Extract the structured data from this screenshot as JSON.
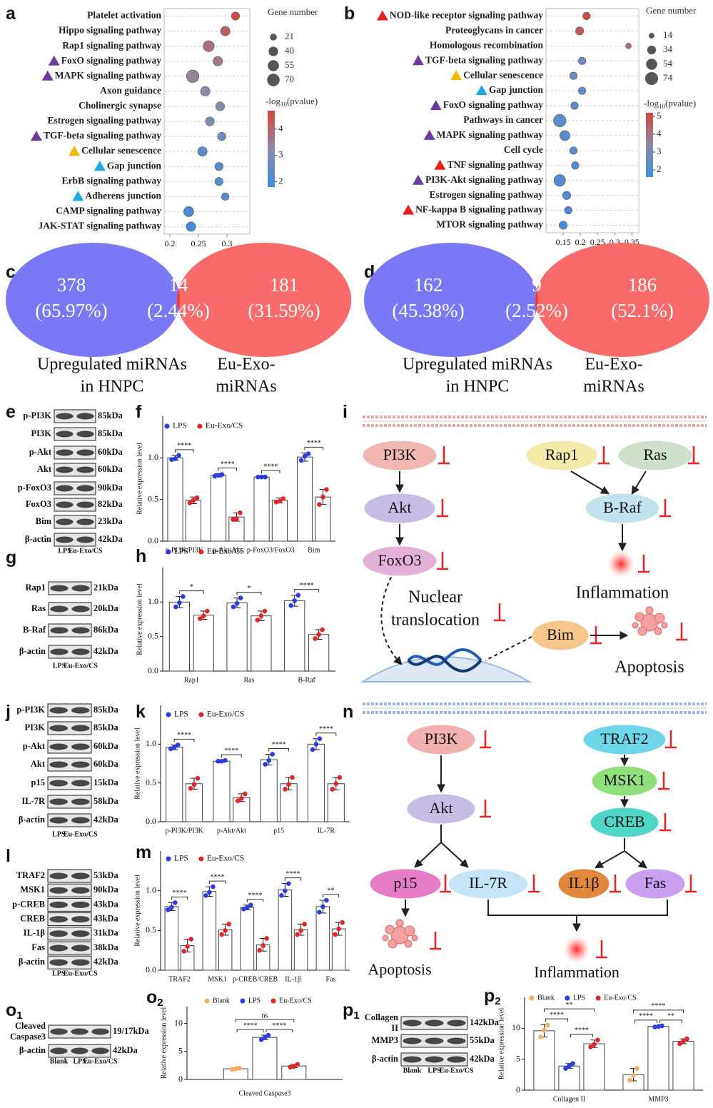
{
  "chart_data": [
    {
      "type": "bubble",
      "panel": "a",
      "categories": [
        "Platelet activation",
        "Hippo signaling pathway",
        "Rap1 signaling pathway",
        "FoxO signaling pathway",
        "MAPK signaling pathway",
        "Axon guidance",
        "Cholinergic synapse",
        "Estrogen signaling pathway",
        "TGF-beta signaling pathway",
        "Cellular senescence",
        "Gap junction",
        "ErbB signaling pathway",
        "Adherens junction",
        "CAMP signaling pathway",
        "JAK-STAT signaling pathway"
      ],
      "values": [
        0.315,
        0.297,
        0.268,
        0.284,
        0.24,
        0.262,
        0.288,
        0.27,
        0.291,
        0.257,
        0.286,
        0.286,
        0.297,
        0.233,
        0.237
      ],
      "sizes": [
        30,
        40,
        55,
        40,
        70,
        40,
        35,
        35,
        30,
        40,
        30,
        30,
        25,
        45,
        40
      ],
      "color_values": [
        4.5,
        4.2,
        3.8,
        3.6,
        3.4,
        3.3,
        3.1,
        3.0,
        2.6,
        2.4,
        2.3,
        2.3,
        2.2,
        2.0,
        2.0
      ],
      "markers": [
        null,
        null,
        null,
        "#6b3b9e",
        "#6b3b9e",
        null,
        null,
        null,
        "#6b3b9e",
        "#f5b800",
        "#1ea8e0",
        null,
        "#1ea8e0",
        null,
        null
      ],
      "xlim": [
        0.19,
        0.34
      ],
      "xticks": [
        0.2,
        0.25,
        0.3
      ],
      "grid": true,
      "size_title": "Gene number",
      "size_ticks": [
        21,
        40,
        55,
        70
      ],
      "color_title": [
        "-log",
        "10",
        "(pvalue)"
      ],
      "clim": [
        1.8,
        4.7
      ],
      "cticks": [
        2,
        3,
        4
      ],
      "colormap": [
        "#3c8ee0",
        "#8e8aa6",
        "#d4453a"
      ]
    },
    {
      "type": "bubble",
      "panel": "b",
      "categories": [
        "NOD-like receptor signaling pathway",
        "Proteoglycans in cancer",
        "Homologous recombination",
        "TGF-beta signaling pathway",
        "Cellular senescence",
        "Gap junction",
        "FoxO signaling pathway",
        "Pathways in cancer",
        "MAPK signaling pathway",
        "Cell cycle",
        "TNF signaling pathway",
        "PI3K-Akt signaling pathway",
        "Estrogen signaling pathway",
        "NF-kappa B signaling pathway",
        "MTOR signaling pathway"
      ],
      "values": [
        0.218,
        0.198,
        0.34,
        0.205,
        0.18,
        0.205,
        0.183,
        0.14,
        0.155,
        0.18,
        0.185,
        0.14,
        0.16,
        0.165,
        0.15
      ],
      "sizes": [
        25,
        30,
        14,
        25,
        25,
        25,
        25,
        70,
        45,
        25,
        25,
        60,
        30,
        25,
        30
      ],
      "color_values": [
        5.0,
        4.6,
        4.2,
        2.6,
        2.5,
        2.4,
        2.3,
        2.3,
        2.2,
        2.2,
        2.1,
        2.1,
        2.0,
        2.0,
        1.9
      ],
      "markers": [
        "#e8201c",
        null,
        null,
        "#6b3b9e",
        "#f5b800",
        "#1ea8e0",
        "#6b3b9e",
        null,
        "#6b3b9e",
        null,
        "#e8201c",
        "#6b3b9e",
        null,
        "#e8201c",
        null
      ],
      "xlim": [
        0.1,
        0.37
      ],
      "xticks": [
        0.15,
        0.2,
        0.25,
        0.3,
        0.35
      ],
      "grid": true,
      "size_title": "Gene number",
      "size_ticks": [
        14,
        34,
        54,
        74
      ],
      "color_title": [
        "-log",
        "10",
        "(pvalue)"
      ],
      "clim": [
        1.6,
        5.2
      ],
      "cticks": [
        2,
        3,
        4,
        5
      ],
      "colormap": [
        "#3c8ee0",
        "#8e8aa6",
        "#d4453a"
      ]
    },
    {
      "type": "venn",
      "panel": "c",
      "values": [
        378,
        14,
        181
      ],
      "percentages": [
        65.97,
        2.44,
        31.59
      ],
      "percentage_labels": [
        "(65.97%)",
        "(2.44%)",
        "(31.59%)"
      ],
      "set_labels": [
        [
          "Upregulated  miRNAs",
          "in HNPC"
        ],
        [
          "Eu-Exo-",
          "miRNAs"
        ]
      ]
    },
    {
      "type": "venn",
      "panel": "d",
      "values": [
        162,
        9,
        186
      ],
      "percentages": [
        45.38,
        2.52,
        52.1
      ],
      "percentage_labels": [
        "(45.38%)",
        "(2.52%)",
        "(52.1%)"
      ],
      "set_labels": [
        [
          "Upregulated  miRNAs",
          "in HNPC"
        ],
        [
          "Eu-Exo-",
          "miRNAs"
        ]
      ]
    },
    {
      "type": "bar",
      "panel": "f",
      "ylabel": "Relative expression level",
      "categories": [
        "p-PI3K/PI3K",
        "p-Akt/Akt",
        "p-FoxO3/FoxO3",
        "Bim"
      ],
      "series": [
        {
          "name": "LPS",
          "color": "#2b3de0",
          "values": [
            1.0,
            0.79,
            0.77,
            1.01
          ],
          "errors": [
            0.03,
            0.02,
            0.01,
            0.05
          ],
          "points": [
            [
              0.98,
              0.99,
              1.03
            ],
            [
              0.78,
              0.79,
              0.8
            ],
            [
              0.77,
              0.77,
              0.77
            ],
            [
              0.97,
              1.02,
              1.05
            ]
          ]
        },
        {
          "name": "Eu-Exo/CS",
          "color": "#e0262a",
          "values": [
            0.49,
            0.29,
            0.49,
            0.53
          ],
          "errors": [
            0.04,
            0.05,
            0.03,
            0.09
          ],
          "points": [
            [
              0.46,
              0.49,
              0.52
            ],
            [
              0.26,
              0.27,
              0.34
            ],
            [
              0.47,
              0.48,
              0.51
            ],
            [
              0.44,
              0.53,
              0.62
            ]
          ]
        }
      ],
      "significance": [
        "****",
        "****",
        "****",
        "****"
      ],
      "ylim": [
        0,
        1.5
      ],
      "yticks": [
        {
          "value": 0,
          "label": "0.0"
        },
        {
          "value": 0.5,
          "label": "0.5"
        },
        {
          "value": 1,
          "label": "1.0"
        }
      ]
    },
    {
      "type": "bar",
      "panel": "h",
      "ylabel": "Relative expression level",
      "categories": [
        "Rap1",
        "Ras",
        "B-Raf"
      ],
      "series": [
        {
          "name": "LPS",
          "color": "#2b3de0",
          "values": [
            1.0,
            0.99,
            1.02
          ],
          "errors": [
            0.08,
            0.07,
            0.08
          ],
          "points": [
            [
              0.93,
              0.99,
              1.08
            ],
            [
              0.93,
              0.98,
              1.06
            ],
            [
              0.95,
              1.02,
              1.1
            ]
          ]
        },
        {
          "name": "Eu-Exo/CS",
          "color": "#e0262a",
          "values": [
            0.81,
            0.8,
            0.53
          ],
          "errors": [
            0.06,
            0.07,
            0.07
          ],
          "points": [
            [
              0.76,
              0.8,
              0.87
            ],
            [
              0.74,
              0.8,
              0.87
            ],
            [
              0.47,
              0.53,
              0.6
            ]
          ]
        }
      ],
      "significance": [
        "*",
        "*",
        "****"
      ],
      "ylim": [
        0,
        1.5
      ],
      "yticks": [
        {
          "value": 0,
          "label": "0.0"
        },
        {
          "value": 0.5,
          "label": "0.5"
        },
        {
          "value": 1,
          "label": "1.0"
        }
      ]
    },
    {
      "type": "bar",
      "panel": "k",
      "ylabel": "Relative expression level",
      "categories": [
        "p-PI3K/PI3K",
        "p-Akt/Akt",
        "p15",
        "IL-7R"
      ],
      "series": [
        {
          "name": "LPS",
          "color": "#2b3de0",
          "values": [
            0.96,
            0.78,
            0.8,
            1.0
          ],
          "errors": [
            0.03,
            0.01,
            0.07,
            0.07
          ],
          "points": [
            [
              0.94,
              0.96,
              0.99
            ],
            [
              0.78,
              0.78,
              0.79
            ],
            [
              0.74,
              0.79,
              0.87
            ],
            [
              0.93,
              1.0,
              1.07
            ]
          ]
        },
        {
          "name": "Eu-Exo/CS",
          "color": "#e0262a",
          "values": [
            0.49,
            0.31,
            0.49,
            0.49
          ],
          "errors": [
            0.07,
            0.05,
            0.08,
            0.08
          ],
          "points": [
            [
              0.43,
              0.48,
              0.56
            ],
            [
              0.27,
              0.3,
              0.36
            ],
            [
              0.42,
              0.48,
              0.57
            ],
            [
              0.42,
              0.49,
              0.57
            ]
          ]
        }
      ],
      "significance": [
        "****",
        "****",
        "****",
        "****"
      ],
      "ylim": [
        0,
        1.5
      ],
      "yticks": [
        {
          "value": 0,
          "label": "0.0"
        },
        {
          "value": 0.5,
          "label": "0.5"
        },
        {
          "value": 1,
          "label": "1.0"
        }
      ]
    },
    {
      "type": "bar",
      "panel": "m",
      "ylabel": "Relative expression level",
      "categories": [
        "TRAF2",
        "MSK1",
        "p-CREB/CREB",
        "IL-1β",
        "Fas"
      ],
      "series": [
        {
          "name": "LPS",
          "color": "#2b3de0",
          "values": [
            0.8,
            0.99,
            0.79,
            1.01,
            0.8
          ],
          "errors": [
            0.05,
            0.06,
            0.03,
            0.08,
            0.08
          ],
          "points": [
            [
              0.76,
              0.79,
              0.85
            ],
            [
              0.94,
              0.98,
              1.05
            ],
            [
              0.77,
              0.79,
              0.82
            ],
            [
              0.94,
              1.0,
              1.09
            ],
            [
              0.73,
              0.8,
              0.88
            ]
          ]
        },
        {
          "name": "Eu-Exo/CS",
          "color": "#e0262a",
          "values": [
            0.31,
            0.51,
            0.32,
            0.51,
            0.52
          ],
          "errors": [
            0.08,
            0.07,
            0.08,
            0.07,
            0.08
          ],
          "points": [
            [
              0.24,
              0.3,
              0.39
            ],
            [
              0.45,
              0.5,
              0.58
            ],
            [
              0.25,
              0.31,
              0.4
            ],
            [
              0.45,
              0.5,
              0.58
            ],
            [
              0.45,
              0.52,
              0.6
            ]
          ]
        }
      ],
      "significance": [
        "****",
        "****",
        "****",
        "****",
        "**"
      ],
      "ylim": [
        0,
        1.5
      ],
      "yticks": [
        {
          "value": 0,
          "label": "0.0"
        },
        {
          "value": 0.5,
          "label": "0.5"
        },
        {
          "value": 1,
          "label": "1.0"
        }
      ]
    },
    {
      "type": "bar",
      "panel": "o",
      "panel_sub": "2",
      "ylabel": "Relative expression level",
      "categories": [
        "Cleaved Caspase3"
      ],
      "series": [
        {
          "name": "Blank",
          "color": "#f2ad5e",
          "values": [
            1.9
          ],
          "errors": [
            0.1
          ],
          "points": [
            [
              1.8,
              1.9,
              2.0
            ]
          ]
        },
        {
          "name": "LPS",
          "color": "#2b3de0",
          "values": [
            7.5
          ],
          "errors": [
            0.4
          ],
          "points": [
            [
              7.1,
              7.5,
              7.9
            ]
          ]
        },
        {
          "name": "Eu-Exo/CS",
          "color": "#e0262a",
          "values": [
            2.4
          ],
          "errors": [
            0.3
          ],
          "points": [
            [
              2.2,
              2.3,
              2.7
            ]
          ]
        }
      ],
      "significance": [
        [
          "ns",
          "****",
          "****"
        ]
      ],
      "ylim": [
        0,
        13
      ],
      "yticks": [
        0,
        5,
        10
      ]
    },
    {
      "type": "bar",
      "panel": "p",
      "panel_sub": "2",
      "ylabel": "Relative expression level",
      "categories": [
        "Collagen II",
        "MMP3"
      ],
      "series": [
        {
          "name": "Blank",
          "color": "#f2ad5e",
          "values": [
            9.6,
            2.5
          ],
          "errors": [
            1.0,
            1.0
          ],
          "points": [
            [
              8.6,
              9.7,
              10.5
            ],
            [
              1.6,
              2.4,
              3.5
            ]
          ]
        },
        {
          "name": "LPS",
          "color": "#2b3de0",
          "values": [
            3.9,
            10.3
          ],
          "errors": [
            0.4,
            0.1
          ],
          "points": [
            [
              3.5,
              3.9,
              4.3
            ],
            [
              10.2,
              10.3,
              10.4
            ]
          ]
        },
        {
          "name": "Eu-Exo/CS",
          "color": "#e0262a",
          "values": [
            7.5,
            7.9
          ],
          "errors": [
            0.6,
            0.4
          ],
          "points": [
            [
              7.0,
              7.4,
              8.1
            ],
            [
              7.5,
              7.9,
              8.3
            ]
          ]
        }
      ],
      "significance": [
        [
          "**",
          "****",
          "****"
        ],
        [
          "****",
          "****",
          "**"
        ]
      ],
      "ylim": [
        0,
        15
      ],
      "yticks": [
        0,
        5,
        10
      ]
    }
  ],
  "blots": [
    {
      "panel": "e",
      "rows": [
        {
          "label": "p-PI3K",
          "size": "85kDa"
        },
        {
          "label": "PI3K",
          "size": "85kDa"
        },
        {
          "label": "p-Akt",
          "size": "60kDa"
        },
        {
          "label": "Akt",
          "size": "60kDa"
        },
        {
          "label": "p-FoxO3",
          "size": "90kDa"
        },
        {
          "label": "FoxO3",
          "size": "82kDa"
        },
        {
          "label": "Bim",
          "size": "23kDa"
        },
        {
          "label": "β-actin",
          "size": "42kDa"
        }
      ],
      "lanes": [
        "LPS",
        "Eu-Exo/CS"
      ]
    },
    {
      "panel": "g",
      "rows": [
        {
          "label": "Rap1",
          "size": "21kDa"
        },
        {
          "label": "Ras",
          "size": "20kDa"
        },
        {
          "label": "B-Raf",
          "size": "86kDa"
        },
        {
          "label": "β-actin",
          "size": "42kDa"
        }
      ],
      "lanes": [
        "LPS",
        "Eu-Exo/CS"
      ]
    },
    {
      "panel": "j",
      "rows": [
        {
          "label": "p-PI3K",
          "size": "85kDa"
        },
        {
          "label": "PI3K",
          "size": "85kDa"
        },
        {
          "label": "p-Akt",
          "size": "60kDa"
        },
        {
          "label": "Akt",
          "size": "60kDa"
        },
        {
          "label": "p15",
          "size": "15kDa"
        },
        {
          "label": "IL-7R",
          "size": "58kDa"
        },
        {
          "label": "β-actin",
          "size": "42kDa"
        }
      ],
      "lanes": [
        "LPS",
        "Eu-Exo/CS"
      ]
    },
    {
      "panel": "l",
      "rows": [
        {
          "label": "TRAF2",
          "size": "53kDa"
        },
        {
          "label": "MSK1",
          "size": "90kDa"
        },
        {
          "label": "p-CREB",
          "size": "43kDa"
        },
        {
          "label": "CREB",
          "size": "43kDa"
        },
        {
          "label": "IL-1β",
          "size": "31kDa"
        },
        {
          "label": "Fas",
          "size": "38kDa"
        },
        {
          "label": "β-actin",
          "size": "42kDa"
        }
      ],
      "lanes": [
        "LPS",
        "Eu-Exo/CS"
      ]
    },
    {
      "panel": "o",
      "panel_sub": "1",
      "rows": [
        {
          "label": [
            "Cleaved",
            "Caspase3"
          ],
          "size": "19/17kDa"
        },
        {
          "label": "β-actin",
          "size": "42kDa"
        }
      ],
      "lanes": [
        "Blank",
        "LPS",
        "Eu-Exo/CS"
      ]
    },
    {
      "panel": "p",
      "panel_sub": "1",
      "rows": [
        {
          "label": [
            "Collagen",
            "II"
          ],
          "size": "142kDa"
        },
        {
          "label": "MMP3",
          "size": "55kDa"
        },
        {
          "label": "β-actin",
          "size": "42kDa"
        }
      ],
      "lanes": [
        "Blank",
        "LPS",
        "Eu-Exo/CS"
      ]
    }
  ],
  "diagrams": [
    {
      "panel": "i",
      "nodes": [
        "PI3K",
        "Akt",
        "FoxO3",
        "Rap1",
        "Ras",
        "B-Raf",
        "Bim"
      ],
      "inflammation": "Inflammation",
      "translocation": [
        "Nuclear",
        "translocation"
      ],
      "apoptosis": "Apoptosis"
    },
    {
      "panel": "n",
      "nodes": [
        "PI3K",
        "Akt",
        "p15",
        "IL-7R",
        "TRAF2",
        "MSK1",
        "CREB",
        "IL1β",
        "Fas"
      ],
      "inflammation": "Inflammation",
      "apoptosis": "Apoptosis"
    }
  ]
}
